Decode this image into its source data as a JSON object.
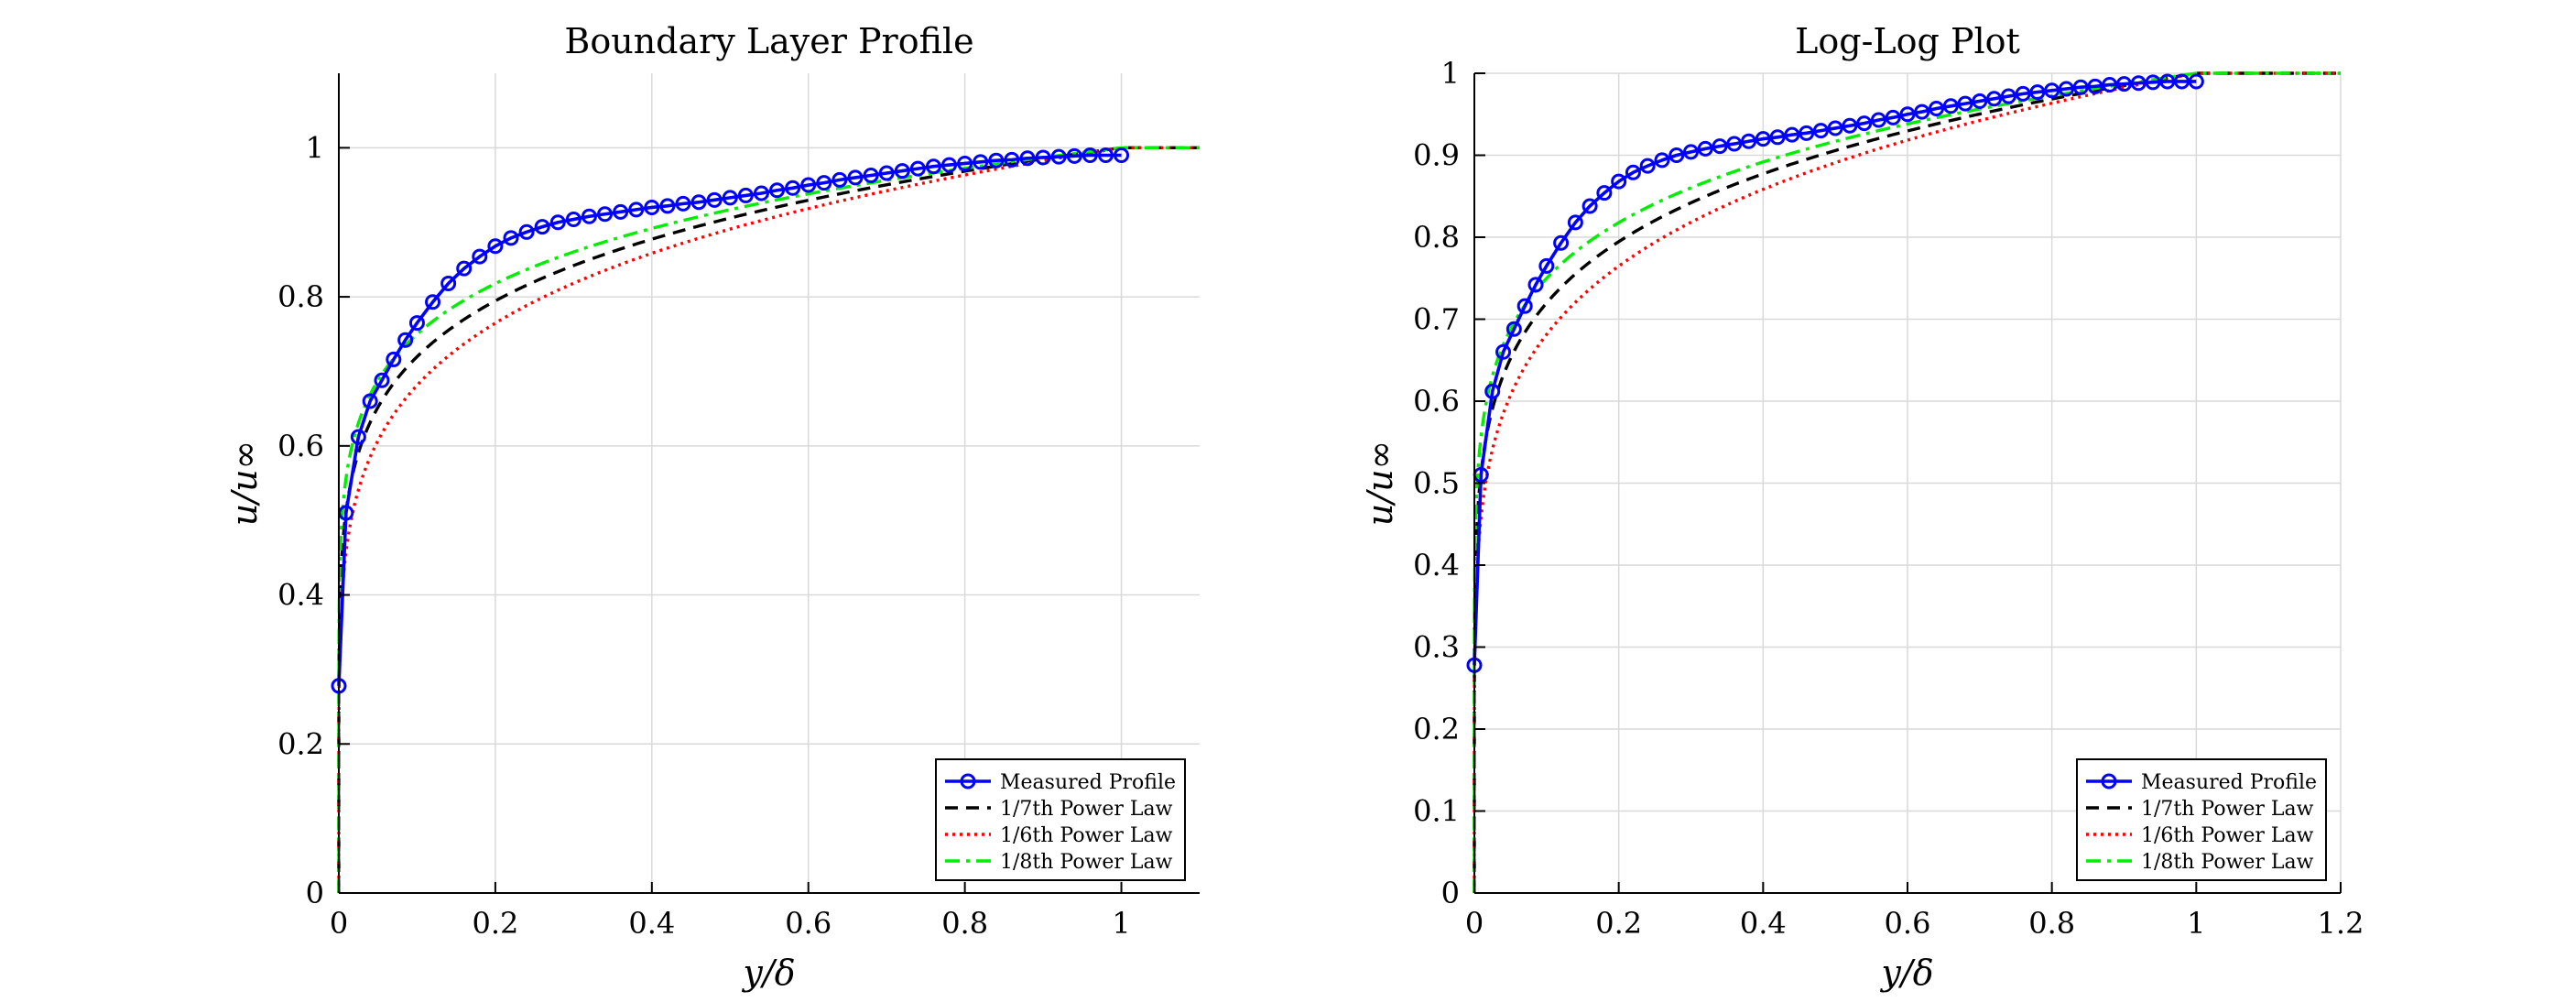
{
  "colors": {
    "measured": "#0000ff",
    "law7": "#000000",
    "law6": "#ff0000",
    "law8": "#00ee00",
    "grid": "#d9d9d9"
  },
  "legend": {
    "location": "bottom-right",
    "entries": [
      "Measured Profile",
      "1/7th Power Law",
      "1/6th Power Law",
      "1/8th Power Law"
    ]
  },
  "chart_data": [
    {
      "type": "line",
      "title": "Boundary Layer Profile",
      "xlabel": "y/δ",
      "ylabel": "u/u∞",
      "xlim": [
        0,
        1.1
      ],
      "ylim": [
        0,
        1.1
      ],
      "xticks": [
        "0",
        "0.2",
        "0.4",
        "0.6",
        "0.8",
        "1"
      ],
      "xtick_values": [
        0,
        0.2,
        0.4,
        0.6,
        0.8,
        1
      ],
      "yticks": [
        "0",
        "0.2",
        "0.4",
        "0.6",
        "0.8",
        "1"
      ],
      "ytick_values": [
        0,
        0.2,
        0.4,
        0.6,
        0.8,
        1
      ],
      "grid": true,
      "legend": "bottom-right",
      "series": [
        {
          "name": "Measured Profile",
          "style": "solid-circle-markers",
          "x": [
            0,
            0.00917,
            0.025,
            0.04,
            0.055,
            0.07,
            0.085,
            0.1,
            0.12,
            0.14,
            0.16,
            0.18,
            0.2,
            0.22,
            0.24,
            0.26,
            0.28,
            0.3,
            0.32,
            0.34,
            0.36,
            0.38,
            0.4,
            0.42,
            0.44,
            0.46,
            0.48,
            0.5,
            0.52,
            0.54,
            0.56,
            0.58,
            0.6,
            0.62,
            0.64,
            0.66,
            0.68,
            0.7,
            0.72,
            0.74,
            0.76,
            0.78,
            0.8,
            0.82,
            0.84,
            0.86,
            0.88,
            0.9,
            0.92,
            0.94,
            0.96,
            0.98,
            1.0
          ],
          "y": [
            0.278,
            0.51,
            0.612,
            0.66,
            0.688,
            0.716,
            0.742,
            0.765,
            0.793,
            0.818,
            0.838,
            0.854,
            0.868,
            0.879,
            0.887,
            0.894,
            0.9,
            0.904,
            0.908,
            0.911,
            0.914,
            0.917,
            0.92,
            0.922,
            0.925,
            0.927,
            0.93,
            0.933,
            0.936,
            0.939,
            0.943,
            0.946,
            0.95,
            0.953,
            0.957,
            0.96,
            0.963,
            0.966,
            0.969,
            0.972,
            0.975,
            0.977,
            0.979,
            0.981,
            0.983,
            0.984,
            0.986,
            0.987,
            0.988,
            0.989,
            0.99,
            0.99,
            0.99
          ]
        },
        {
          "name": "1/7th Power Law",
          "style": "dashed",
          "exponent": 0.142857,
          "x_range": [
            0,
            1.1
          ]
        },
        {
          "name": "1/6th Power Law",
          "style": "dotted",
          "exponent": 0.166667,
          "x_range": [
            0,
            1.1
          ]
        },
        {
          "name": "1/8th Power Law",
          "style": "dash-dot",
          "exponent": 0.125,
          "x_range": [
            0,
            1.1
          ]
        }
      ]
    },
    {
      "type": "line",
      "title": "Log-Log Plot",
      "xlabel": "y/δ",
      "ylabel": "u/u∞",
      "xlim": [
        0,
        1.2
      ],
      "ylim": [
        0,
        1
      ],
      "xticks": [
        "0",
        "0.2",
        "0.4",
        "0.6",
        "0.8",
        "1",
        "1.2"
      ],
      "xtick_values": [
        0,
        0.2,
        0.4,
        0.6,
        0.8,
        1,
        1.2
      ],
      "yticks": [
        "0",
        "0.1",
        "0.2",
        "0.3",
        "0.4",
        "0.5",
        "0.6",
        "0.7",
        "0.8",
        "0.9",
        "1"
      ],
      "ytick_values": [
        0,
        0.1,
        0.2,
        0.3,
        0.4,
        0.5,
        0.6,
        0.7,
        0.8,
        0.9,
        1
      ],
      "grid": true,
      "legend": "bottom-right",
      "series": [
        {
          "name": "Measured Profile",
          "style": "solid-circle-markers",
          "x": [
            0,
            0.00917,
            0.025,
            0.04,
            0.055,
            0.07,
            0.085,
            0.1,
            0.12,
            0.14,
            0.16,
            0.18,
            0.2,
            0.22,
            0.24,
            0.26,
            0.28,
            0.3,
            0.32,
            0.34,
            0.36,
            0.38,
            0.4,
            0.42,
            0.44,
            0.46,
            0.48,
            0.5,
            0.52,
            0.54,
            0.56,
            0.58,
            0.6,
            0.62,
            0.64,
            0.66,
            0.68,
            0.7,
            0.72,
            0.74,
            0.76,
            0.78,
            0.8,
            0.82,
            0.84,
            0.86,
            0.88,
            0.9,
            0.92,
            0.94,
            0.96,
            0.98,
            1.0
          ],
          "y": [
            0.278,
            0.51,
            0.612,
            0.66,
            0.688,
            0.716,
            0.742,
            0.765,
            0.793,
            0.818,
            0.838,
            0.854,
            0.868,
            0.879,
            0.887,
            0.894,
            0.9,
            0.904,
            0.908,
            0.911,
            0.914,
            0.917,
            0.92,
            0.922,
            0.925,
            0.927,
            0.93,
            0.933,
            0.936,
            0.939,
            0.943,
            0.946,
            0.95,
            0.953,
            0.957,
            0.96,
            0.963,
            0.966,
            0.969,
            0.972,
            0.975,
            0.977,
            0.979,
            0.981,
            0.983,
            0.984,
            0.986,
            0.987,
            0.988,
            0.989,
            0.99,
            0.99,
            0.99
          ]
        },
        {
          "name": "1/7th Power Law",
          "style": "dashed",
          "exponent": 0.142857,
          "x_range": [
            0,
            1.2
          ]
        },
        {
          "name": "1/6th Power Law",
          "style": "dotted",
          "exponent": 0.166667,
          "x_range": [
            0,
            1.2
          ]
        },
        {
          "name": "1/8th Power Law",
          "style": "dash-dot",
          "exponent": 0.125,
          "x_range": [
            0,
            1.2
          ]
        }
      ]
    }
  ]
}
